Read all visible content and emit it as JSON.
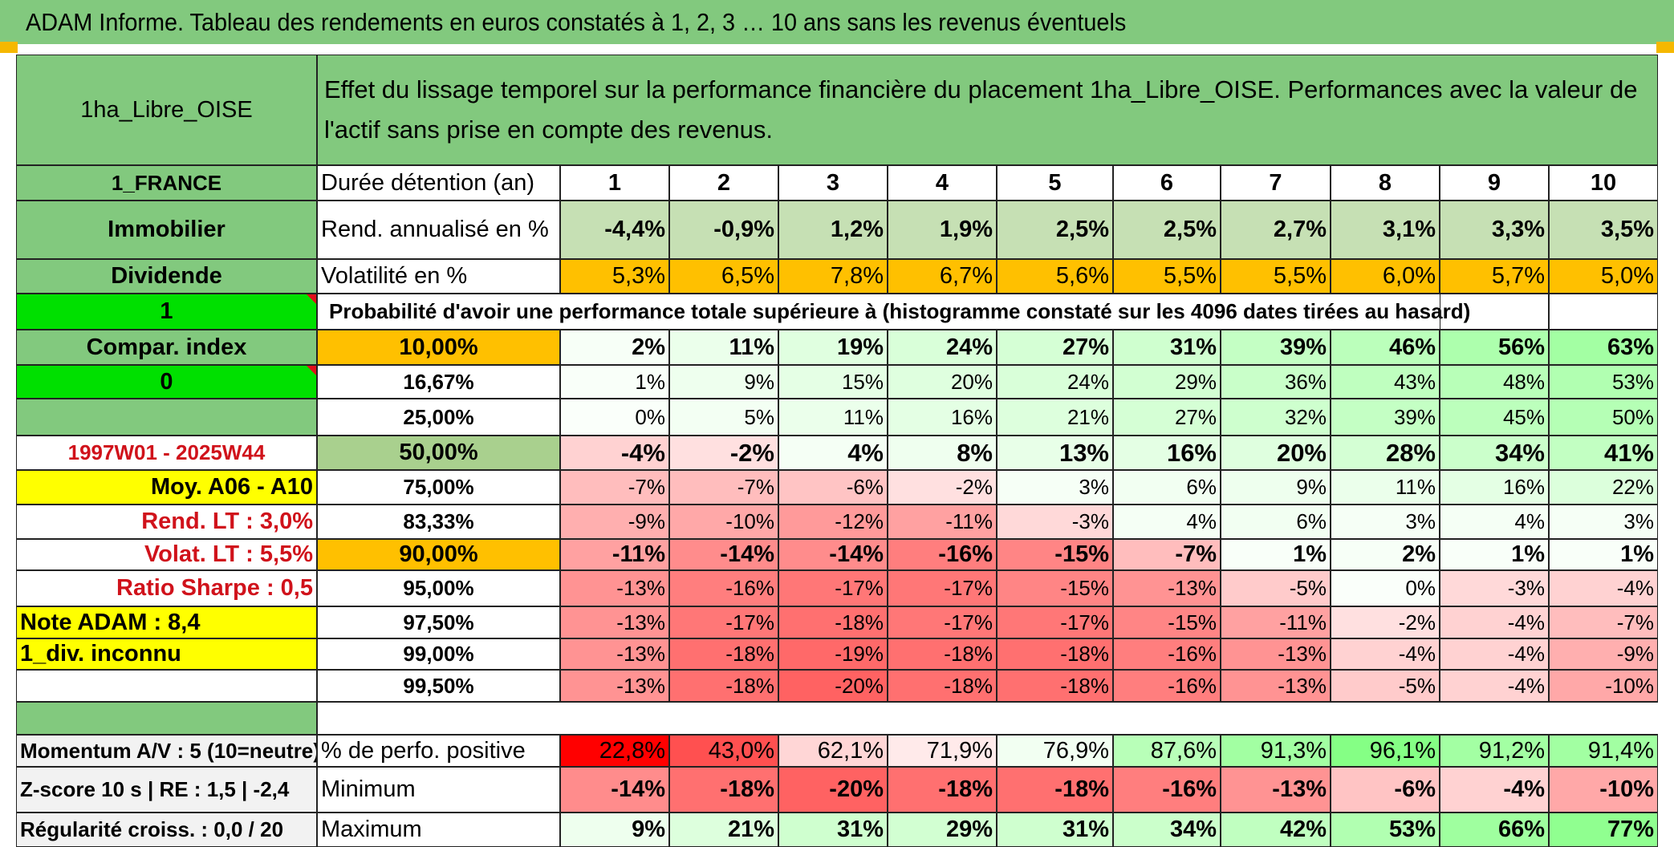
{
  "title": "ADAM Informe. Tableau des rendements en euros constatés à 1, 2, 3 … 10 ans sans les revenus éventuels",
  "asset_name": "1ha_Libre_OISE",
  "description": "Effet du lissage temporel sur la performance financière du placement 1ha_Libre_OISE. Performances avec la valeur de l'actif sans prise en compte des revenus.",
  "left": {
    "country": "1_FRANCE",
    "category": "Immobilier",
    "revenue_type": "Dividende",
    "flag_1": "1",
    "compar_index": "Compar. index",
    "flag_0": "0",
    "period": "1997W01 - 2025W44",
    "moy": "Moy. A06 - A10",
    "rend_lt": "Rend. LT :   3,0%",
    "volat_lt": "Volat. LT :   5,5%",
    "ratio_sharpe": "Ratio Sharpe :    0,5",
    "note_adam": "Note ADAM : 8,4",
    "div_inconnu": "1_div. inconnu",
    "momentum": "Momentum A/V : 5 (10=neutre)",
    "zscore": "Z-score 10 s | RE : 1,5 | -2,4",
    "regularite": "Régularité croiss. : 0,0 / 20"
  },
  "labels": {
    "duree": "Durée détention (an)",
    "rend": "Rend. annualisé en %",
    "volat": "Volatilité en %",
    "proba": "Probabilité d'avoir une performance totale supérieure à (histogramme constaté sur les 4096 dates tirées au hasard)",
    "pct_pos": "% de perfo. positive",
    "minimum": "Minimum",
    "maximum": "Maximum"
  },
  "years": [
    "1",
    "2",
    "3",
    "4",
    "5",
    "6",
    "7",
    "8",
    "9",
    "10"
  ],
  "rend": [
    "-4,4%",
    "-0,9%",
    "1,2%",
    "1,9%",
    "2,5%",
    "2,5%",
    "2,7%",
    "3,1%",
    "3,3%",
    "3,5%"
  ],
  "volat": [
    "5,3%",
    "6,5%",
    "7,8%",
    "6,7%",
    "5,6%",
    "5,5%",
    "5,5%",
    "6,0%",
    "5,7%",
    "5,0%"
  ],
  "quantiles": [
    {
      "label": "10,00%",
      "values": [
        "2%",
        "11%",
        "19%",
        "24%",
        "27%",
        "31%",
        "39%",
        "46%",
        "56%",
        "63%"
      ],
      "pcts": [
        2,
        11,
        19,
        24,
        27,
        31,
        39,
        46,
        56,
        63
      ]
    },
    {
      "label": "16,67%",
      "values": [
        "1%",
        "9%",
        "15%",
        "20%",
        "24%",
        "29%",
        "36%",
        "43%",
        "48%",
        "53%"
      ],
      "pcts": [
        1,
        9,
        15,
        20,
        24,
        29,
        36,
        43,
        48,
        53
      ]
    },
    {
      "label": "25,00%",
      "values": [
        "0%",
        "5%",
        "11%",
        "16%",
        "21%",
        "27%",
        "32%",
        "39%",
        "45%",
        "50%"
      ],
      "pcts": [
        0,
        5,
        11,
        16,
        21,
        27,
        32,
        39,
        45,
        50
      ]
    },
    {
      "label": "50,00%",
      "values": [
        "-4%",
        "-2%",
        "4%",
        "8%",
        "13%",
        "16%",
        "20%",
        "28%",
        "34%",
        "41%"
      ],
      "pcts": [
        -4,
        -2,
        4,
        8,
        13,
        16,
        20,
        28,
        34,
        41
      ]
    },
    {
      "label": "75,00%",
      "values": [
        "-7%",
        "-7%",
        "-6%",
        "-2%",
        "3%",
        "6%",
        "9%",
        "11%",
        "16%",
        "22%"
      ],
      "pcts": [
        -7,
        -7,
        -6,
        -2,
        3,
        6,
        9,
        11,
        16,
        22
      ]
    },
    {
      "label": "83,33%",
      "values": [
        "-9%",
        "-10%",
        "-12%",
        "-11%",
        "-3%",
        "4%",
        "6%",
        "3%",
        "4%",
        "3%"
      ],
      "pcts": [
        -9,
        -10,
        -12,
        -11,
        -3,
        4,
        6,
        3,
        4,
        3
      ]
    },
    {
      "label": "90,00%",
      "values": [
        "-11%",
        "-14%",
        "-14%",
        "-16%",
        "-15%",
        "-7%",
        "1%",
        "2%",
        "1%",
        "1%"
      ],
      "pcts": [
        -11,
        -14,
        -14,
        -16,
        -15,
        -7,
        1,
        2,
        1,
        1
      ]
    },
    {
      "label": "95,00%",
      "values": [
        "-13%",
        "-16%",
        "-17%",
        "-17%",
        "-15%",
        "-13%",
        "-5%",
        "0%",
        "-3%",
        "-4%"
      ],
      "pcts": [
        -13,
        -16,
        -17,
        -17,
        -15,
        -13,
        -5,
        0,
        -3,
        -4
      ]
    },
    {
      "label": "97,50%",
      "values": [
        "-13%",
        "-17%",
        "-18%",
        "-17%",
        "-17%",
        "-15%",
        "-11%",
        "-2%",
        "-4%",
        "-7%"
      ],
      "pcts": [
        -13,
        -17,
        -18,
        -17,
        -17,
        -15,
        -11,
        -2,
        -4,
        -7
      ]
    },
    {
      "label": "99,00%",
      "values": [
        "-13%",
        "-18%",
        "-19%",
        "-18%",
        "-18%",
        "-16%",
        "-13%",
        "-4%",
        "-4%",
        "-9%"
      ],
      "pcts": [
        -13,
        -18,
        -19,
        -18,
        -18,
        -16,
        -13,
        -4,
        -4,
        -9
      ]
    },
    {
      "label": "99,50%",
      "values": [
        "-13%",
        "-18%",
        "-20%",
        "-18%",
        "-18%",
        "-16%",
        "-13%",
        "-5%",
        "-4%",
        "-10%"
      ],
      "pcts": [
        -13,
        -18,
        -20,
        -18,
        -18,
        -16,
        -13,
        -5,
        -4,
        -10
      ]
    }
  ],
  "pct_pos": [
    "22,8%",
    "43,0%",
    "62,1%",
    "71,9%",
    "76,9%",
    "87,6%",
    "91,3%",
    "96,1%",
    "91,2%",
    "91,4%"
  ],
  "pct_pos_values": [
    22.8,
    43.0,
    62.1,
    71.9,
    76.9,
    87.6,
    91.3,
    96.1,
    91.2,
    91.4
  ],
  "minimum": [
    "-14%",
    "-18%",
    "-20%",
    "-18%",
    "-18%",
    "-16%",
    "-13%",
    "-6%",
    "-4%",
    "-10%"
  ],
  "minimum_values": [
    -14,
    -18,
    -20,
    -18,
    -18,
    -16,
    -13,
    -6,
    -4,
    -10
  ],
  "maximum": [
    "9%",
    "21%",
    "31%",
    "29%",
    "31%",
    "34%",
    "42%",
    "53%",
    "66%",
    "77%"
  ],
  "maximum_values": [
    9,
    21,
    31,
    29,
    31,
    34,
    42,
    53,
    66,
    77
  ],
  "colors": {
    "header_green": "#82c97e",
    "bright_green": "#00e000",
    "orange": "#ffc000",
    "yellow": "#ffff00",
    "rend_fill": "#c6e0b4",
    "q50_label": "#a9d08e",
    "red_strong": "#ff0000"
  }
}
